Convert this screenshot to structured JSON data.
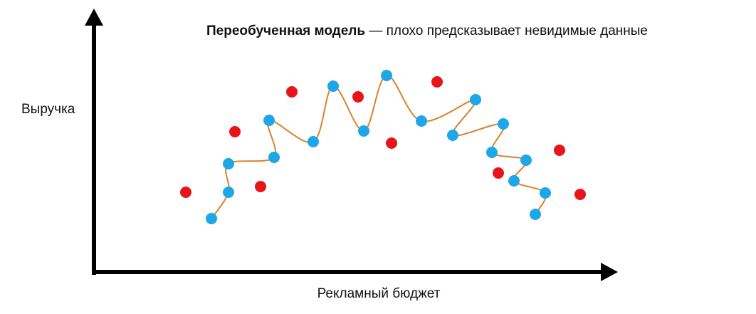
{
  "diagram": {
    "title": {
      "bold": "Переобученная модель",
      "rest": " — плохо предсказывает невидимые данные"
    },
    "y_axis_label": "Выручка",
    "x_axis_label": "Рекламный бюджет"
  }
}
